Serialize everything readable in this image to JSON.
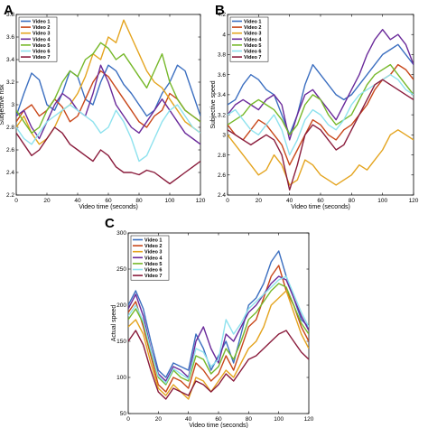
{
  "colors": {
    "Video 1": "#3c6fc0",
    "Video 2": "#c8471a",
    "Video 3": "#e4a41f",
    "Video 4": "#6a2a9a",
    "Video 5": "#76b82a",
    "Video 6": "#8ee2ee",
    "Video 7": "#8a1c3c"
  },
  "chart_data": [
    {
      "panel": "A",
      "type": "line",
      "xlabel": "Video time (seconds)",
      "ylabel": "Subjective risk",
      "xlim": [
        0,
        120
      ],
      "ylim": [
        2.2,
        3.8
      ],
      "xticks": [
        0,
        20,
        40,
        60,
        80,
        100,
        120
      ],
      "yticks": [
        2.2,
        2.4,
        2.6,
        2.8,
        3.0,
        3.2,
        3.4,
        3.6,
        3.8
      ],
      "legend": "top-left",
      "x": [
        0,
        5,
        10,
        15,
        20,
        25,
        30,
        35,
        40,
        45,
        50,
        55,
        60,
        65,
        70,
        75,
        80,
        85,
        90,
        95,
        100,
        105,
        110,
        115,
        120
      ],
      "series": [
        {
          "name": "Video 1",
          "values": [
            2.9,
            3.1,
            3.28,
            3.22,
            3.0,
            2.95,
            3.1,
            3.3,
            3.25,
            3.05,
            3.0,
            3.2,
            3.35,
            3.3,
            3.18,
            3.1,
            3.0,
            2.9,
            2.95,
            3.1,
            3.2,
            3.35,
            3.3,
            3.1,
            2.9
          ]
        },
        {
          "name": "Video 2",
          "values": [
            2.85,
            2.95,
            3.0,
            2.9,
            2.95,
            3.05,
            2.98,
            2.85,
            2.9,
            3.05,
            3.2,
            3.3,
            3.25,
            3.15,
            3.05,
            2.95,
            2.85,
            2.8,
            2.9,
            2.95,
            3.1,
            3.05,
            2.95,
            2.9,
            2.85
          ]
        },
        {
          "name": "Video 3",
          "values": [
            2.8,
            2.9,
            2.75,
            2.65,
            2.7,
            2.8,
            2.95,
            3.0,
            3.1,
            3.25,
            3.45,
            3.4,
            3.6,
            3.55,
            3.75,
            3.6,
            3.45,
            3.3,
            3.2,
            3.15,
            3.05,
            2.95,
            2.85,
            2.8,
            2.75
          ]
        },
        {
          "name": "Video 4",
          "values": [
            2.9,
            2.95,
            2.8,
            2.7,
            2.85,
            3.0,
            3.1,
            3.05,
            2.95,
            2.9,
            3.1,
            3.35,
            3.2,
            3.0,
            2.9,
            2.8,
            2.75,
            2.85,
            2.95,
            3.05,
            2.95,
            2.85,
            2.75,
            2.7,
            2.65
          ]
        },
        {
          "name": "Video 5",
          "values": [
            2.95,
            2.85,
            2.75,
            2.8,
            2.95,
            3.05,
            3.2,
            3.3,
            3.25,
            3.4,
            3.45,
            3.55,
            3.5,
            3.4,
            3.45,
            3.35,
            3.25,
            3.15,
            3.3,
            3.45,
            3.2,
            3.05,
            2.95,
            2.9,
            2.85
          ]
        },
        {
          "name": "Video 6",
          "values": [
            2.8,
            2.7,
            2.65,
            2.75,
            2.85,
            2.9,
            2.95,
            3.0,
            2.95,
            2.9,
            2.85,
            2.75,
            2.8,
            2.95,
            2.85,
            2.7,
            2.5,
            2.55,
            2.7,
            2.85,
            2.95,
            3.0,
            2.9,
            2.8,
            2.75
          ]
        },
        {
          "name": "Video 7",
          "values": [
            2.75,
            2.65,
            2.55,
            2.6,
            2.7,
            2.8,
            2.75,
            2.65,
            2.6,
            2.55,
            2.5,
            2.6,
            2.55,
            2.45,
            2.4,
            2.4,
            2.38,
            2.42,
            2.4,
            2.35,
            2.3,
            2.35,
            2.4,
            2.45,
            2.5
          ]
        }
      ]
    },
    {
      "panel": "B",
      "type": "line",
      "xlabel": "Video time (seconds)",
      "ylabel": "Subjective speed",
      "xlim": [
        0,
        120
      ],
      "ylim": [
        2.4,
        4.2
      ],
      "xticks": [
        0,
        20,
        40,
        60,
        80,
        100,
        120
      ],
      "yticks": [
        2.4,
        2.6,
        2.8,
        3.0,
        3.2,
        3.4,
        3.6,
        3.8,
        4.0,
        4.2
      ],
      "legend": "top-left",
      "x": [
        0,
        5,
        10,
        15,
        20,
        25,
        30,
        35,
        40,
        45,
        50,
        55,
        60,
        65,
        70,
        75,
        80,
        85,
        90,
        95,
        100,
        105,
        110,
        115,
        120
      ],
      "series": [
        {
          "name": "Video 1",
          "values": [
            3.3,
            3.35,
            3.5,
            3.6,
            3.55,
            3.45,
            3.4,
            3.2,
            3.0,
            3.2,
            3.5,
            3.7,
            3.6,
            3.5,
            3.4,
            3.35,
            3.4,
            3.5,
            3.6,
            3.7,
            3.8,
            3.85,
            3.9,
            3.8,
            3.7
          ]
        },
        {
          "name": "Video 2",
          "values": [
            3.1,
            3.0,
            2.95,
            3.05,
            3.15,
            3.1,
            3.0,
            2.9,
            2.7,
            2.85,
            3.0,
            3.15,
            3.1,
            3.0,
            2.95,
            3.05,
            3.1,
            3.2,
            3.3,
            3.45,
            3.55,
            3.6,
            3.7,
            3.65,
            3.55
          ]
        },
        {
          "name": "Video 3",
          "values": [
            3.0,
            2.9,
            2.8,
            2.7,
            2.6,
            2.65,
            2.8,
            2.7,
            2.5,
            2.55,
            2.75,
            2.7,
            2.6,
            2.55,
            2.5,
            2.55,
            2.6,
            2.7,
            2.65,
            2.75,
            2.85,
            3.0,
            3.05,
            3.0,
            2.95
          ]
        },
        {
          "name": "Video 4",
          "values": [
            3.2,
            3.3,
            3.35,
            3.3,
            3.25,
            3.35,
            3.4,
            3.3,
            2.95,
            3.2,
            3.4,
            3.45,
            3.35,
            3.25,
            3.15,
            3.3,
            3.45,
            3.6,
            3.8,
            3.95,
            4.05,
            3.95,
            4.0,
            3.9,
            3.7
          ]
        },
        {
          "name": "Video 5",
          "values": [
            3.1,
            3.15,
            3.2,
            3.3,
            3.35,
            3.3,
            3.25,
            3.15,
            3.0,
            3.1,
            3.3,
            3.4,
            3.35,
            3.2,
            3.1,
            3.15,
            3.2,
            3.35,
            3.5,
            3.6,
            3.65,
            3.7,
            3.6,
            3.5,
            3.4
          ]
        },
        {
          "name": "Video 6",
          "values": [
            3.2,
            3.25,
            3.15,
            3.05,
            3.0,
            3.1,
            3.2,
            3.05,
            2.8,
            2.95,
            3.15,
            3.25,
            3.2,
            3.1,
            3.05,
            3.15,
            3.3,
            3.4,
            3.45,
            3.5,
            3.55,
            3.6,
            3.55,
            3.45,
            3.4
          ]
        },
        {
          "name": "Video 7",
          "values": [
            3.05,
            3.0,
            2.95,
            2.9,
            2.95,
            3.0,
            2.95,
            2.8,
            2.45,
            2.7,
            3.0,
            3.1,
            3.05,
            2.95,
            2.85,
            2.9,
            3.05,
            3.2,
            3.35,
            3.5,
            3.55,
            3.5,
            3.45,
            3.4,
            3.35
          ]
        }
      ]
    },
    {
      "panel": "C",
      "type": "line",
      "xlabel": "Video time (seconds)",
      "ylabel": "Actual speed",
      "xlim": [
        0,
        120
      ],
      "ylim": [
        50,
        300
      ],
      "xticks": [
        0,
        20,
        40,
        60,
        80,
        100,
        120
      ],
      "yticks": [
        50,
        100,
        150,
        200,
        250,
        300
      ],
      "legend": "top-left",
      "x": [
        0,
        5,
        10,
        15,
        20,
        25,
        30,
        35,
        40,
        45,
        50,
        55,
        60,
        65,
        70,
        75,
        80,
        85,
        90,
        95,
        100,
        105,
        110,
        115,
        120
      ],
      "series": [
        {
          "name": "Video 1",
          "values": [
            200,
            220,
            195,
            150,
            110,
            100,
            120,
            115,
            110,
            160,
            140,
            110,
            130,
            150,
            120,
            160,
            200,
            210,
            230,
            260,
            275,
            240,
            210,
            180,
            170
          ]
        },
        {
          "name": "Video 2",
          "values": [
            190,
            205,
            170,
            130,
            90,
            80,
            100,
            95,
            85,
            120,
            110,
            95,
            105,
            130,
            110,
            140,
            170,
            180,
            210,
            240,
            255,
            220,
            200,
            170,
            150
          ]
        },
        {
          "name": "Video 3",
          "values": [
            170,
            180,
            160,
            120,
            85,
            75,
            90,
            80,
            70,
            100,
            95,
            80,
            95,
            110,
            100,
            120,
            140,
            150,
            170,
            200,
            210,
            220,
            190,
            160,
            140
          ]
        },
        {
          "name": "Video 4",
          "values": [
            195,
            215,
            185,
            140,
            105,
            95,
            115,
            110,
            100,
            150,
            170,
            140,
            120,
            160,
            150,
            170,
            190,
            200,
            215,
            230,
            240,
            235,
            210,
            185,
            165
          ]
        },
        {
          "name": "Video 5",
          "values": [
            180,
            195,
            175,
            135,
            100,
            90,
            110,
            100,
            95,
            130,
            125,
            105,
            115,
            140,
            125,
            150,
            180,
            190,
            205,
            220,
            230,
            225,
            200,
            175,
            160
          ]
        },
        {
          "name": "Video 6",
          "values": [
            185,
            200,
            178,
            138,
            102,
            92,
            112,
            105,
            98,
            140,
            135,
            115,
            125,
            180,
            160,
            175,
            195,
            205,
            215,
            225,
            235,
            240,
            215,
            190,
            170
          ]
        },
        {
          "name": "Video 7",
          "values": [
            150,
            165,
            145,
            110,
            80,
            70,
            85,
            80,
            75,
            95,
            90,
            80,
            90,
            105,
            95,
            110,
            125,
            130,
            140,
            150,
            160,
            165,
            150,
            135,
            125
          ]
        }
      ]
    }
  ],
  "panels": [
    {
      "letter": "A"
    },
    {
      "letter": "B"
    },
    {
      "letter": "C"
    }
  ]
}
